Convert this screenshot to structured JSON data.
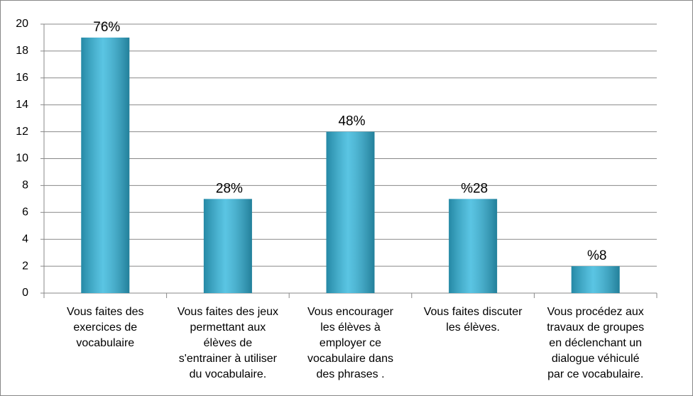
{
  "chart_data": {
    "type": "bar",
    "categories": [
      [
        "Vous faites des",
        "exercices de",
        "vocabulaire"
      ],
      [
        "Vous faites des jeux",
        "permettant aux",
        "élèves de",
        "s'entrainer à utiliser",
        "du vocabulaire."
      ],
      [
        "Vous encourager",
        "les élèves à",
        "employer ce",
        "vocabulaire dans",
        "des phrases ."
      ],
      [
        "Vous faites discuter",
        "les élèves."
      ],
      [
        "Vous procédez aux",
        "travaux de groupes",
        "en déclenchant un",
        "dialogue véhiculé",
        "par ce vocabulaire."
      ]
    ],
    "values": [
      19,
      7,
      12,
      7,
      2
    ],
    "value_labels": [
      "76%",
      "28%",
      "48%",
      "%28",
      "%8"
    ],
    "color": "#31b6dc",
    "ylim": [
      0,
      20
    ],
    "yticks": [
      0,
      2,
      4,
      6,
      8,
      10,
      12,
      14,
      16,
      18,
      20
    ],
    "grid": true
  }
}
